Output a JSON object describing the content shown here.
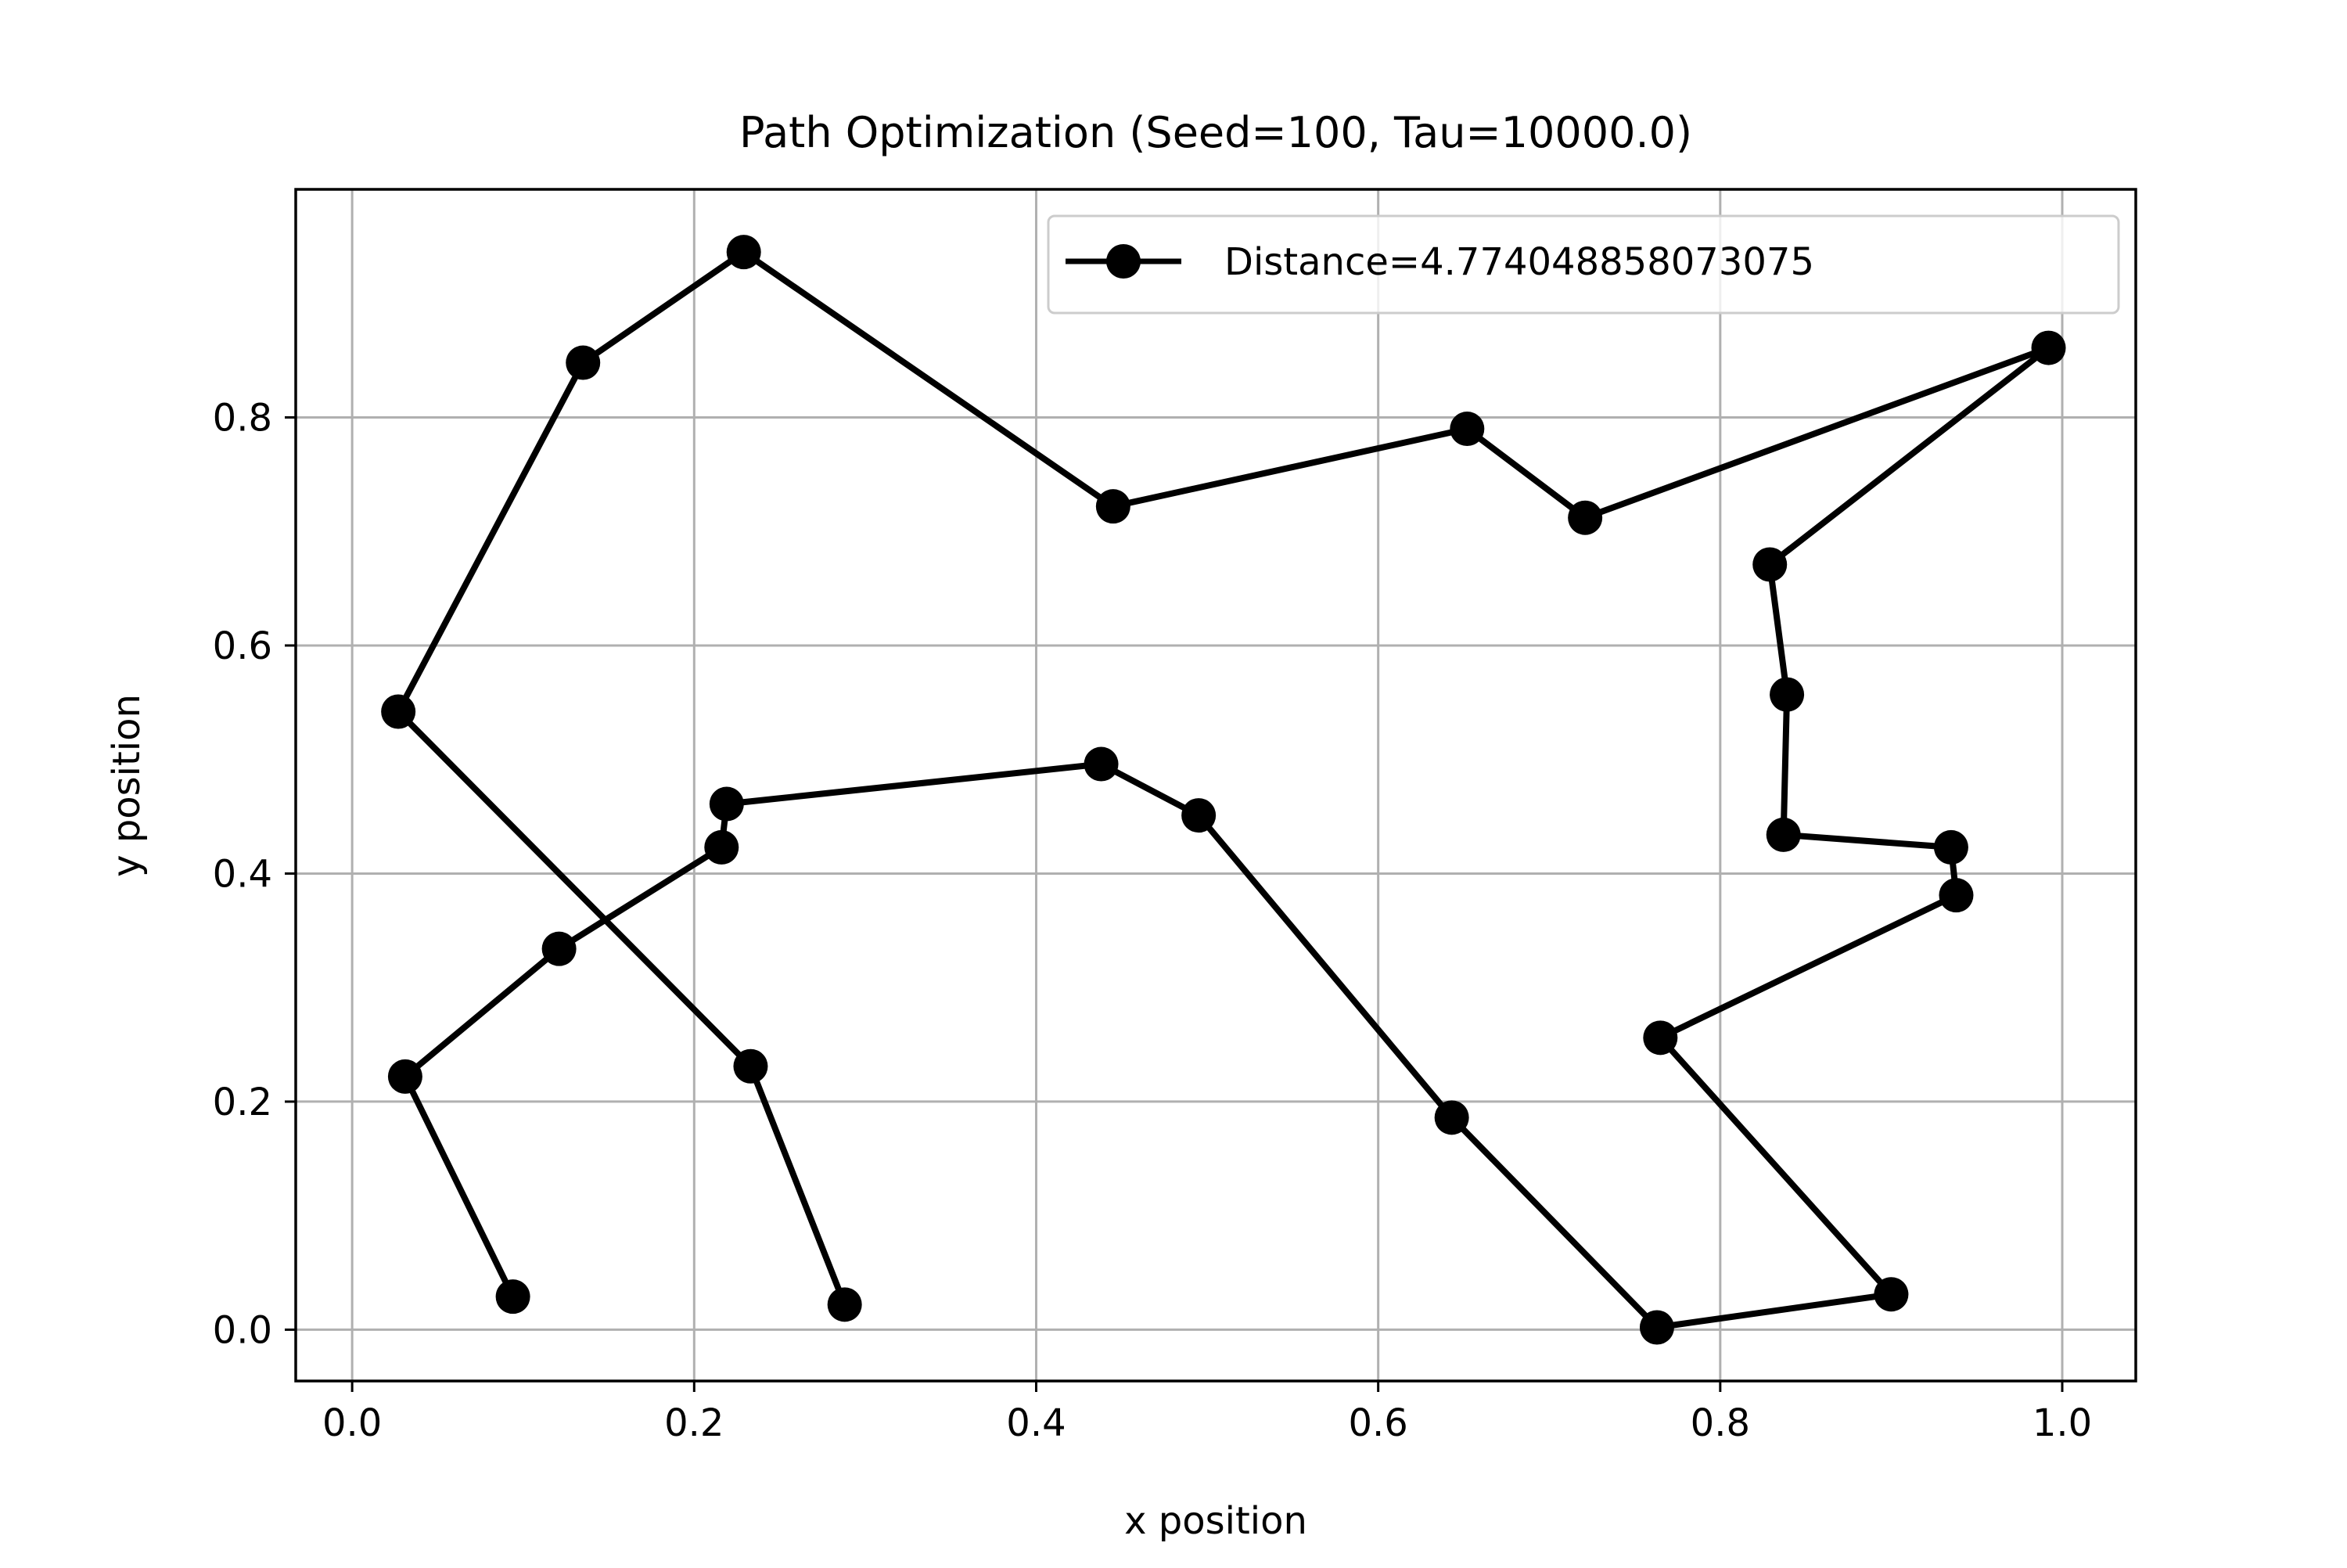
{
  "chart_data": {
    "type": "line",
    "title": "Path Optimization (Seed=100, Tau=10000.0)",
    "xlabel": "x position",
    "ylabel": "y position",
    "xlim": [
      -0.033,
      1.043
    ],
    "ylim": [
      -0.045,
      1.0
    ],
    "xticks": [
      0.0,
      0.2,
      0.4,
      0.6,
      0.8,
      1.0
    ],
    "xtick_labels": [
      "0.0",
      "0.2",
      "0.4",
      "0.6",
      "0.8",
      "1.0"
    ],
    "yticks": [
      0.0,
      0.2,
      0.4,
      0.6,
      0.8
    ],
    "ytick_labels": [
      "0.0",
      "0.2",
      "0.4",
      "0.6",
      "0.8"
    ],
    "grid": true,
    "legend_position": "top-right",
    "colors": {
      "line": "#000000",
      "grid": "#b0b0b0",
      "axes": "#000000"
    },
    "series": [
      {
        "name": "Distance=4.774048858073075",
        "marker": "circle",
        "x": [
          0.288,
          0.233,
          0.027,
          0.135,
          0.229,
          0.445,
          0.652,
          0.721,
          0.992,
          0.829,
          0.839,
          0.837,
          0.935,
          0.938,
          0.765,
          0.9,
          0.763,
          0.643,
          0.495,
          0.438,
          0.219,
          0.216,
          0.121,
          0.031,
          0.094
        ],
        "y": [
          0.022,
          0.231,
          0.542,
          0.848,
          0.945,
          0.722,
          0.79,
          0.712,
          0.861,
          0.671,
          0.557,
          0.434,
          0.423,
          0.381,
          0.256,
          0.031,
          0.002,
          0.186,
          0.451,
          0.496,
          0.461,
          0.423,
          0.334,
          0.222,
          0.029
        ]
      }
    ]
  }
}
